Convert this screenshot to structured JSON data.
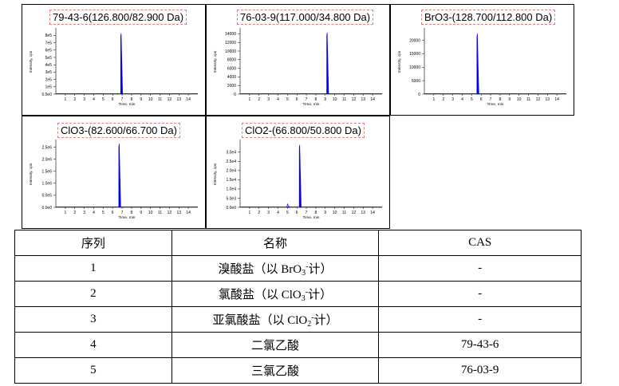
{
  "charts": [
    {
      "title": "79-43-6(126.800/82.900 Da)",
      "chart_data": {
        "type": "line",
        "title": "79-43-6(126.800/82.900 Da)",
        "xlabel": "Time, min",
        "ylabel": "Intensity, cps",
        "xlim": [
          0,
          15
        ],
        "ylim": [
          0,
          880000
        ],
        "x_ticks": [
          "1",
          "2",
          "3",
          "4",
          "5",
          "6",
          "7",
          "8",
          "9",
          "10",
          "11",
          "12",
          "13",
          "14"
        ],
        "y_ticks": [
          "0.0e0",
          "1e5",
          "2e5",
          "3e5",
          "4e5",
          "5e5",
          "6e5",
          "7e5",
          "8e5"
        ],
        "y_tick_values": [
          0,
          100000,
          200000,
          300000,
          400000,
          500000,
          600000,
          700000,
          800000
        ],
        "peaks": [
          {
            "rt": 6.9,
            "height": 830000,
            "width": 0.12
          }
        ]
      }
    },
    {
      "title": "76-03-9(117.000/34.800 Da)",
      "chart_data": {
        "type": "line",
        "title": "76-03-9(117.000/34.800 Da)",
        "xlabel": "Time, min",
        "ylabel": "Intensity, cps",
        "xlim": [
          0,
          15
        ],
        "ylim": [
          0,
          15000
        ],
        "x_ticks": [
          "1",
          "2",
          "3",
          "4",
          "5",
          "6",
          "7",
          "8",
          "9",
          "10",
          "11",
          "12",
          "13",
          "14"
        ],
        "y_ticks": [
          "0",
          "2000",
          "4000",
          "6000",
          "8000",
          "10000",
          "12000",
          "14000"
        ],
        "y_tick_values": [
          0,
          2000,
          4000,
          6000,
          8000,
          10000,
          12000,
          14000
        ],
        "peaks": [
          {
            "rt": 9.2,
            "height": 14300,
            "width": 0.12
          }
        ]
      }
    },
    {
      "title": "BrO3-(128.700/112.800 Da)",
      "chart_data": {
        "type": "line",
        "title": "BrO3-(128.700/112.800 Da)",
        "xlabel": "Time, min",
        "ylabel": "Intensity, cps",
        "xlim": [
          0,
          15
        ],
        "ylim": [
          0,
          24000
        ],
        "x_ticks": [
          "1",
          "2",
          "3",
          "4",
          "5",
          "6",
          "7",
          "8",
          "9",
          "10",
          "11",
          "12",
          "13",
          "14"
        ],
        "y_ticks": [
          "0",
          "5000",
          "10000",
          "15000",
          "20000"
        ],
        "y_tick_values": [
          0,
          5000,
          10000,
          15000,
          20000
        ],
        "peaks": [
          {
            "rt": 5.6,
            "height": 22500,
            "width": 0.12
          }
        ]
      }
    },
    {
      "title": "ClO3-(82.600/66.700 Da)",
      "chart_data": {
        "type": "line",
        "title": "ClO3-(82.600/66.700 Da)",
        "xlabel": "Time, min",
        "ylabel": "Intensity, cps",
        "xlim": [
          0,
          15
        ],
        "ylim": [
          0,
          2750000
        ],
        "x_ticks": [
          "1",
          "2",
          "3",
          "4",
          "5",
          "6",
          "7",
          "8",
          "9",
          "10",
          "11",
          "12",
          "13",
          "14"
        ],
        "y_ticks": [
          "0.0e0",
          "5.0e5",
          "1.0e6",
          "1.5e6",
          "2.0e6",
          "2.5e6"
        ],
        "y_tick_values": [
          0,
          500000,
          1000000,
          1500000,
          2000000,
          2500000
        ],
        "peaks": [
          {
            "rt": 6.7,
            "height": 2650000,
            "width": 0.12
          }
        ]
      }
    },
    {
      "title": "ClO2-(66.800/50.800 Da)",
      "chart_data": {
        "type": "line",
        "title": "ClO2-(66.800/50.800 Da)",
        "xlabel": "Time, min",
        "ylabel": "Intensity, cps",
        "xlim": [
          0,
          15
        ],
        "ylim": [
          0,
          36000
        ],
        "x_ticks": [
          "1",
          "2",
          "3",
          "4",
          "5",
          "6",
          "7",
          "8",
          "9",
          "10",
          "11",
          "12",
          "13",
          "14"
        ],
        "y_ticks": [
          "0.0e0",
          "5.0e3",
          "1.0e4",
          "1.5e4",
          "2.0e4",
          "2.5e4",
          "3.0e4"
        ],
        "y_tick_values": [
          0,
          5000,
          10000,
          15000,
          20000,
          25000,
          30000
        ],
        "peaks": [
          {
            "rt": 5.0,
            "height": 1800,
            "width": 0.18,
            "outline": true
          },
          {
            "rt": 6.3,
            "height": 34000,
            "width": 0.12
          }
        ]
      }
    }
  ],
  "table": {
    "headers": [
      "序列",
      "名称",
      "CAS"
    ],
    "rows": [
      {
        "seq": "1",
        "name_prefix": "溴酸盐（以 BrO",
        "name_sub": "3",
        "name_sup": "-",
        "name_suffix": "计）",
        "cas": "-"
      },
      {
        "seq": "2",
        "name_prefix": "氯酸盐（以 ClO",
        "name_sub": "3",
        "name_sup": "-",
        "name_suffix": "计）",
        "cas": "-"
      },
      {
        "seq": "3",
        "name_prefix": "亚氯酸盐（以 ClO",
        "name_sub": "2",
        "name_sup": "-",
        "name_suffix": "计）",
        "cas": "-"
      },
      {
        "seq": "4",
        "name_prefix": "二氯乙酸",
        "name_sub": "",
        "name_sup": "",
        "name_suffix": "",
        "cas": "79-43-6"
      },
      {
        "seq": "5",
        "name_prefix": "三氯乙酸",
        "name_sub": "",
        "name_sup": "",
        "name_suffix": "",
        "cas": "76-03-9"
      }
    ]
  },
  "colors": {
    "peak": "#0000ff",
    "axis": "#000000",
    "title_border": "#e08080"
  }
}
